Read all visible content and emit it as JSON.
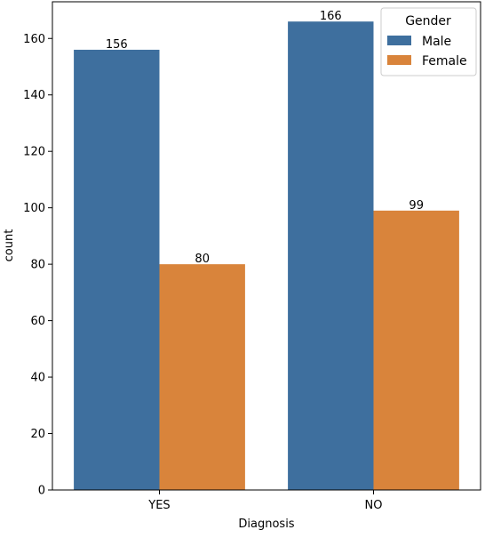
{
  "chart_data": {
    "type": "bar",
    "categories": [
      "YES",
      "NO"
    ],
    "series": [
      {
        "name": "Male",
        "values": [
          156,
          166
        ],
        "color": "#3e6f9e"
      },
      {
        "name": "Female",
        "values": [
          80,
          99
        ],
        "color": "#d9843b"
      }
    ],
    "data_labels": [
      [
        "156",
        "166"
      ],
      [
        "80",
        "99"
      ]
    ],
    "xlabel": "Diagnosis",
    "ylabel": "count",
    "ylim": [
      0,
      173
    ],
    "yticks": [
      0,
      20,
      40,
      60,
      80,
      100,
      120,
      140,
      160
    ],
    "grid": false,
    "legend": {
      "title": "Gender",
      "placement": "top-right"
    }
  }
}
